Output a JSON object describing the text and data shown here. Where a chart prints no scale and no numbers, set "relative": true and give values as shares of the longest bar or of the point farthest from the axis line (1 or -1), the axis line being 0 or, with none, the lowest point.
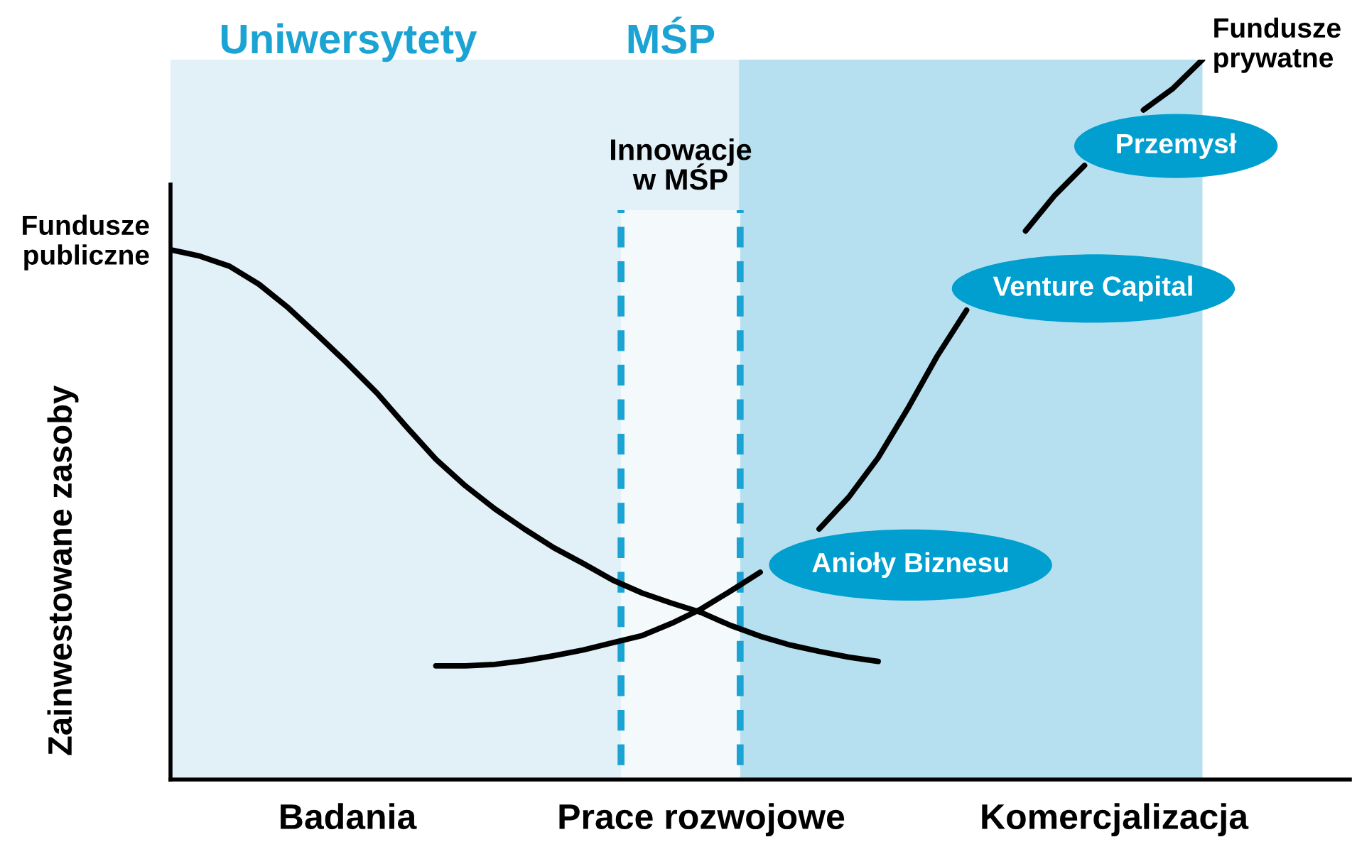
{
  "chart_data": {
    "type": "line",
    "relative": true,
    "ylabel": "Zainwestowane zasoby",
    "categories": [
      null,
      null,
      null,
      null,
      null,
      null,
      "Badania",
      null,
      null,
      null,
      null,
      null,
      null,
      null,
      null,
      null,
      null,
      null,
      "Prace rozwojowe",
      null,
      null,
      null,
      null,
      null,
      null,
      null,
      null,
      null,
      null,
      null,
      null,
      null,
      "Komercjalizacja",
      null,
      null,
      null,
      null,
      null,
      null,
      null,
      null
    ],
    "series": [
      {
        "color": "#000000",
        "values": [
          0.736,
          0.727,
          0.713,
          0.688,
          0.655,
          0.617,
          0.578,
          0.537,
          0.49,
          0.445,
          0.408,
          0.376,
          0.348,
          0.322,
          0.3,
          0.277,
          0.259,
          0.245,
          0.232,
          0.214,
          0.199,
          0.187,
          0.178,
          0.17,
          0.164,
          null,
          null,
          null,
          null,
          null,
          null,
          null,
          null,
          null,
          null,
          null,
          null,
          null,
          null,
          null,
          null
        ]
      },
      {
        "color": "#000000",
        "values": [
          null,
          null,
          null,
          null,
          null,
          null,
          null,
          null,
          null,
          0.158,
          0.158,
          0.16,
          0.165,
          0.172,
          0.18,
          0.19,
          0.2,
          0.217,
          0.237,
          0.262,
          0.288,
          null,
          0.348,
          0.392,
          0.447,
          0.515,
          0.588,
          0.652,
          null,
          0.762,
          0.812,
          0.853,
          null,
          0.93,
          0.96,
          1.0,
          null,
          null,
          null,
          null,
          null
        ]
      }
    ],
    "annotations": [
      "Uniwersytety",
      "MŚP",
      "Fundusze\npubliczne",
      "Fundusze\nprywatne",
      "Przemysł",
      "Venture Capital",
      "Anioły Biznesu",
      "Innowacje\nw MŚP"
    ],
    "grid": false,
    "legend": false
  }
}
